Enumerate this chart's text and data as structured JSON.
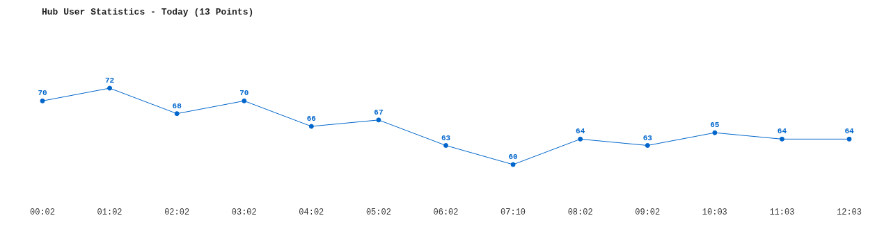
{
  "chart_data": {
    "type": "line",
    "title": "Hub User Statistics - Today (13 Points)",
    "categories": [
      "00:02",
      "01:02",
      "02:02",
      "03:02",
      "04:02",
      "05:02",
      "06:02",
      "07:10",
      "08:02",
      "09:02",
      "10:03",
      "11:03",
      "12:03"
    ],
    "series": [
      {
        "color": "#0066cc",
        "values": [
          70,
          72,
          68,
          70,
          66,
          67,
          63,
          60,
          64,
          63,
          65,
          64,
          64
        ]
      }
    ],
    "data_labels": true,
    "marker": "circle",
    "line_style": "solid",
    "grid": false,
    "legend": false,
    "tick_labels": "x"
  }
}
